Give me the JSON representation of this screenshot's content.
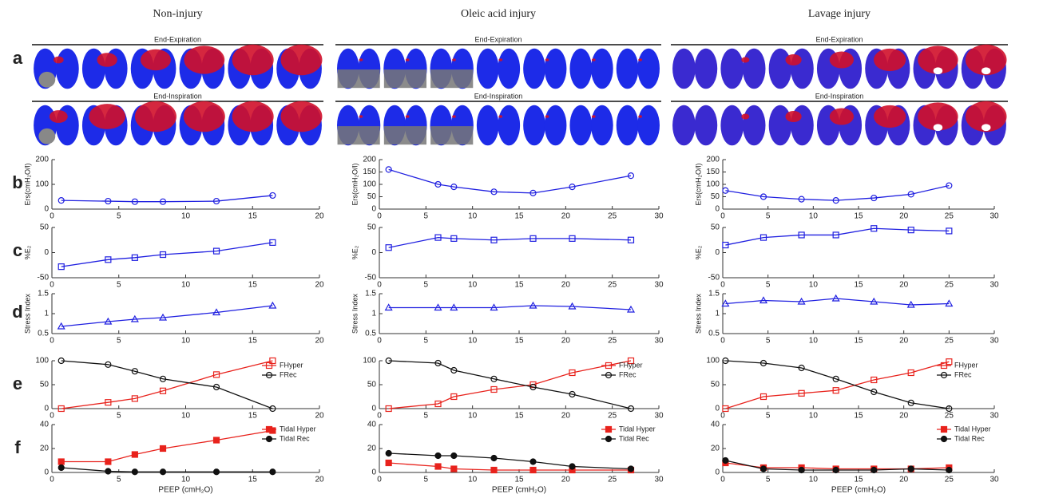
{
  "row_labels": [
    "a",
    "b",
    "c",
    "d",
    "e",
    "f"
  ],
  "columns": [
    {
      "title": "Non-injury",
      "image_labels": [
        "End-Expiration",
        "End-Inspiration"
      ],
      "chart_data": [
        {
          "type": "line",
          "ylabel": "Ers(cmH₂O/l)",
          "x": [
            0.7,
            4.2,
            6.2,
            8.3,
            12.3,
            16.5
          ],
          "xlim": [
            0,
            20
          ],
          "xticks": [
            0,
            5,
            10,
            15,
            20
          ],
          "ylim": [
            0,
            200
          ],
          "yticks": [
            0,
            100,
            200
          ],
          "series": [
            {
              "color": "#1f1fe0",
              "marker": "circle",
              "filled": false,
              "values": [
                35,
                32,
                30,
                30,
                32,
                55
              ]
            }
          ]
        },
        {
          "type": "line",
          "ylabel": "%E₂",
          "x": [
            0.7,
            4.2,
            6.2,
            8.3,
            12.3,
            16.5
          ],
          "xlim": [
            0,
            20
          ],
          "xticks": [
            0,
            5,
            10,
            15,
            20
          ],
          "ylim": [
            -50,
            50
          ],
          "yticks": [
            -50,
            0,
            50
          ],
          "series": [
            {
              "color": "#1f1fe0",
              "marker": "square",
              "filled": false,
              "values": [
                -28,
                -14,
                -10,
                -4,
                3,
                20
              ]
            }
          ]
        },
        {
          "type": "line",
          "ylabel": "Stress Index",
          "x": [
            0.7,
            4.2,
            6.2,
            8.3,
            12.3,
            16.5
          ],
          "xlim": [
            0,
            20
          ],
          "xticks": [
            0,
            5,
            10,
            15,
            20
          ],
          "ylim": [
            0.5,
            1.5
          ],
          "yticks": [
            0.5,
            1,
            1.5
          ],
          "series": [
            {
              "color": "#1f1fe0",
              "marker": "triangle",
              "filled": false,
              "values": [
                0.68,
                0.8,
                0.86,
                0.9,
                1.03,
                1.2
              ]
            }
          ]
        },
        {
          "type": "line",
          "x": [
            0.7,
            4.2,
            6.2,
            8.3,
            12.3,
            16.5
          ],
          "xlim": [
            0,
            20
          ],
          "xticks": [
            0,
            5,
            10,
            15,
            20
          ],
          "ylim": [
            0,
            100
          ],
          "yticks": [
            0,
            50,
            100
          ],
          "legend": "upper right",
          "series": [
            {
              "name": "FHyper",
              "color": "#e8221c",
              "marker": "square",
              "filled": false,
              "values": [
                0,
                13,
                21,
                37,
                71,
                100
              ]
            },
            {
              "name": "FRec",
              "color": "#111111",
              "marker": "circle",
              "filled": false,
              "values": [
                100,
                92,
                78,
                62,
                45,
                0
              ]
            }
          ]
        },
        {
          "type": "line",
          "xlabel": "PEEP (cmH₂O)",
          "x": [
            0.7,
            4.2,
            6.2,
            8.3,
            12.3,
            16.5
          ],
          "xlim": [
            0,
            20
          ],
          "xticks": [
            0,
            5,
            10,
            15,
            20
          ],
          "ylim": [
            0,
            40
          ],
          "yticks": [
            0,
            20,
            40
          ],
          "legend": "upper right",
          "series": [
            {
              "name": "Tidal Hyper",
              "color": "#e8221c",
              "marker": "square",
              "filled": true,
              "values": [
                9,
                9,
                15,
                20,
                27,
                35
              ]
            },
            {
              "name": "Tidal Rec",
              "color": "#111111",
              "marker": "circle",
              "filled": true,
              "values": [
                4,
                1,
                0.5,
                0.5,
                0.5,
                0.5
              ]
            }
          ]
        }
      ]
    },
    {
      "title": "Oleic acid injury",
      "image_labels": [
        "End-Expiration",
        "End-Inspiration"
      ],
      "chart_data": [
        {
          "type": "line",
          "ylabel": "Ers(cmH₂O/l)",
          "x": [
            1,
            6.3,
            8,
            12.3,
            16.5,
            20.7,
            27
          ],
          "xlim": [
            0,
            30
          ],
          "xticks": [
            0,
            5,
            10,
            15,
            20,
            25,
            30
          ],
          "ylim": [
            0,
            200
          ],
          "yticks": [
            0,
            50,
            100,
            150,
            200
          ],
          "series": [
            {
              "color": "#1f1fe0",
              "marker": "circle",
              "filled": false,
              "values": [
                160,
                100,
                90,
                70,
                65,
                90,
                135
              ]
            }
          ]
        },
        {
          "type": "line",
          "ylabel": "%E₂",
          "x": [
            1,
            6.3,
            8,
            12.3,
            16.5,
            20.7,
            27
          ],
          "xlim": [
            0,
            30
          ],
          "xticks": [
            0,
            5,
            10,
            15,
            20,
            25,
            30
          ],
          "ylim": [
            -50,
            50
          ],
          "yticks": [
            -50,
            0,
            50
          ],
          "series": [
            {
              "color": "#1f1fe0",
              "marker": "square",
              "filled": false,
              "values": [
                10,
                30,
                28,
                25,
                28,
                28,
                25
              ]
            }
          ]
        },
        {
          "type": "line",
          "ylabel": "Stress Index",
          "x": [
            1,
            6.3,
            8,
            12.3,
            16.5,
            20.7,
            27
          ],
          "xlim": [
            0,
            30
          ],
          "xticks": [
            0,
            5,
            10,
            15,
            20,
            25,
            30
          ],
          "ylim": [
            0.5,
            1.5
          ],
          "yticks": [
            0.5,
            1,
            1.5
          ],
          "series": [
            {
              "color": "#1f1fe0",
              "marker": "triangle",
              "filled": false,
              "values": [
                1.15,
                1.15,
                1.15,
                1.15,
                1.2,
                1.18,
                1.1
              ]
            }
          ]
        },
        {
          "type": "line",
          "x": [
            1,
            6.3,
            8,
            12.3,
            16.5,
            20.7,
            27
          ],
          "xlim": [
            0,
            30
          ],
          "xticks": [
            0,
            5,
            10,
            15,
            20,
            25,
            30
          ],
          "ylim": [
            0,
            100
          ],
          "yticks": [
            0,
            50,
            100
          ],
          "legend": "upper right",
          "series": [
            {
              "name": "FHyper",
              "color": "#e8221c",
              "marker": "square",
              "filled": false,
              "values": [
                0,
                10,
                25,
                40,
                50,
                75,
                100
              ]
            },
            {
              "name": "FRec",
              "color": "#111111",
              "marker": "circle",
              "filled": false,
              "values": [
                100,
                95,
                80,
                62,
                45,
                30,
                0
              ]
            }
          ]
        },
        {
          "type": "line",
          "xlabel": "PEEP (cmH₂O)",
          "x": [
            1,
            6.3,
            8,
            12.3,
            16.5,
            20.7,
            27
          ],
          "xlim": [
            0,
            30
          ],
          "xticks": [
            0,
            5,
            10,
            15,
            20,
            25,
            30
          ],
          "ylim": [
            0,
            40
          ],
          "yticks": [
            0,
            20,
            40
          ],
          "legend": "upper right",
          "series": [
            {
              "name": "Tidal Hyper",
              "color": "#e8221c",
              "marker": "square",
              "filled": true,
              "values": [
                8,
                5,
                3,
                2,
                2,
                2,
                2
              ]
            },
            {
              "name": "Tidal Rec",
              "color": "#111111",
              "marker": "circle",
              "filled": true,
              "values": [
                16,
                14,
                14,
                12,
                9,
                5,
                3
              ]
            }
          ]
        }
      ]
    },
    {
      "title": "Lavage injury",
      "image_labels": [
        "End-Expiration",
        "End-Inspiration"
      ],
      "chart_data": [
        {
          "type": "line",
          "ylabel": "Ers(cmH₂O/l)",
          "x": [
            0.3,
            4.5,
            8.7,
            12.5,
            16.7,
            20.8,
            25
          ],
          "xlim": [
            0,
            30
          ],
          "xticks": [
            0,
            5,
            10,
            15,
            20,
            25,
            30
          ],
          "ylim": [
            0,
            200
          ],
          "yticks": [
            0,
            50,
            100,
            150,
            200
          ],
          "series": [
            {
              "color": "#1f1fe0",
              "marker": "circle",
              "filled": false,
              "values": [
                75,
                50,
                40,
                35,
                45,
                60,
                95
              ]
            }
          ]
        },
        {
          "type": "line",
          "ylabel": "%E₂",
          "x": [
            0.3,
            4.5,
            8.7,
            12.5,
            16.7,
            20.8,
            25
          ],
          "xlim": [
            0,
            30
          ],
          "xticks": [
            0,
            5,
            10,
            15,
            20,
            25,
            30
          ],
          "ylim": [
            -50,
            50
          ],
          "yticks": [
            -50,
            0,
            50
          ],
          "series": [
            {
              "color": "#1f1fe0",
              "marker": "square",
              "filled": false,
              "values": [
                15,
                30,
                35,
                35,
                48,
                45,
                43
              ]
            }
          ]
        },
        {
          "type": "line",
          "ylabel": "Stress Index",
          "x": [
            0.3,
            4.5,
            8.7,
            12.5,
            16.7,
            20.8,
            25
          ],
          "xlim": [
            0,
            30
          ],
          "xticks": [
            0,
            5,
            10,
            15,
            20,
            25,
            30
          ],
          "ylim": [
            0.5,
            1.5
          ],
          "yticks": [
            0.5,
            1,
            1.5
          ],
          "series": [
            {
              "color": "#1f1fe0",
              "marker": "triangle",
              "filled": false,
              "values": [
                1.25,
                1.33,
                1.3,
                1.38,
                1.3,
                1.22,
                1.25
              ]
            }
          ]
        },
        {
          "type": "line",
          "x": [
            0.3,
            4.5,
            8.7,
            12.5,
            16.7,
            20.8,
            25
          ],
          "xlim": [
            0,
            30
          ],
          "xticks": [
            0,
            5,
            10,
            15,
            20,
            25,
            30
          ],
          "ylim": [
            0,
            100
          ],
          "yticks": [
            0,
            50,
            100
          ],
          "legend": "upper right",
          "series": [
            {
              "name": "FHyper",
              "color": "#e8221c",
              "marker": "square",
              "filled": false,
              "values": [
                0,
                25,
                32,
                38,
                60,
                75,
                98
              ]
            },
            {
              "name": "FRec",
              "color": "#111111",
              "marker": "circle",
              "filled": false,
              "values": [
                100,
                95,
                85,
                62,
                35,
                12,
                0
              ]
            }
          ]
        },
        {
          "type": "line",
          "xlabel": "PEEP (cmH₂O)",
          "x": [
            0.3,
            4.5,
            8.7,
            12.5,
            16.7,
            20.8,
            25
          ],
          "xlim": [
            0,
            30
          ],
          "xticks": [
            0,
            5,
            10,
            15,
            20,
            25,
            30
          ],
          "ylim": [
            0,
            40
          ],
          "yticks": [
            0,
            20,
            40
          ],
          "legend": "upper right",
          "series": [
            {
              "name": "Tidal Hyper",
              "color": "#e8221c",
              "marker": "square",
              "filled": true,
              "values": [
                8,
                4,
                4,
                3,
                3,
                3,
                4
              ]
            },
            {
              "name": "Tidal Rec",
              "color": "#111111",
              "marker": "circle",
              "filled": true,
              "values": [
                10,
                3,
                2,
                2,
                2,
                3,
                2
              ]
            }
          ]
        }
      ]
    }
  ]
}
